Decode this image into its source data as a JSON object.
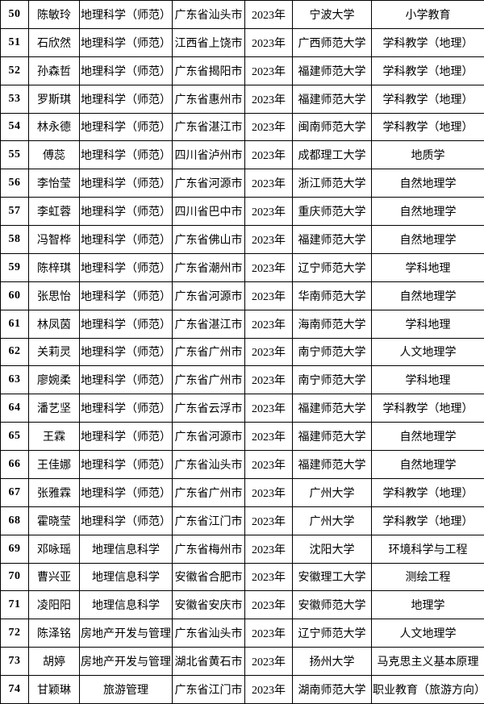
{
  "table": {
    "description_colors": {
      "border": "#000000",
      "text": "#000000",
      "background": "#ffffff"
    },
    "rows": [
      {
        "no": "50",
        "name": "陈敏玲",
        "major": "地理科学（师范）",
        "origin": "广东省汕头市",
        "year": "2023年",
        "university": "宁波大学",
        "program": "小学教育"
      },
      {
        "no": "51",
        "name": "石欣然",
        "major": "地理科学（师范）",
        "origin": "江西省上饶市",
        "year": "2023年",
        "university": "广西师范大学",
        "program": "学科教学（地理）"
      },
      {
        "no": "52",
        "name": "孙森哲",
        "major": "地理科学（师范）",
        "origin": "广东省揭阳市",
        "year": "2023年",
        "university": "福建师范大学",
        "program": "学科教学（地理）"
      },
      {
        "no": "53",
        "name": "罗斯琪",
        "major": "地理科学（师范）",
        "origin": "广东省惠州市",
        "year": "2023年",
        "university": "福建师范大学",
        "program": "学科教学（地理）"
      },
      {
        "no": "54",
        "name": "林永德",
        "major": "地理科学（师范）",
        "origin": "广东省湛江市",
        "year": "2023年",
        "university": "闽南师范大学",
        "program": "学科教学（地理）"
      },
      {
        "no": "55",
        "name": "傅蕊",
        "major": "地理科学（师范）",
        "origin": "四川省泸州市",
        "year": "2023年",
        "university": "成都理工大学",
        "program": "地质学"
      },
      {
        "no": "56",
        "name": "李怡莹",
        "major": "地理科学（师范）",
        "origin": "广东省河源市",
        "year": "2023年",
        "university": "浙江师范大学",
        "program": "自然地理学"
      },
      {
        "no": "57",
        "name": "李虹蓉",
        "major": "地理科学（师范）",
        "origin": "四川省巴中市",
        "year": "2023年",
        "university": "重庆师范大学",
        "program": "自然地理学"
      },
      {
        "no": "58",
        "name": "冯智桦",
        "major": "地理科学（师范）",
        "origin": "广东省佛山市",
        "year": "2023年",
        "university": "福建师范大学",
        "program": "自然地理学"
      },
      {
        "no": "59",
        "name": "陈梓琪",
        "major": "地理科学（师范）",
        "origin": "广东省潮州市",
        "year": "2023年",
        "university": "辽宁师范大学",
        "program": "学科地理"
      },
      {
        "no": "60",
        "name": "张思怡",
        "major": "地理科学（师范）",
        "origin": "广东省河源市",
        "year": "2023年",
        "university": "华南师范大学",
        "program": "自然地理学"
      },
      {
        "no": "61",
        "name": "林凤茵",
        "major": "地理科学（师范）",
        "origin": "广东省湛江市",
        "year": "2023年",
        "university": "海南师范大学",
        "program": "学科地理"
      },
      {
        "no": "62",
        "name": "关莉灵",
        "major": "地理科学（师范）",
        "origin": "广东省广州市",
        "year": "2023年",
        "university": "南宁师范大学",
        "program": "人文地理学"
      },
      {
        "no": "63",
        "name": "廖婉柔",
        "major": "地理科学（师范）",
        "origin": "广东省广州市",
        "year": "2023年",
        "university": "南宁师范大学",
        "program": "学科地理"
      },
      {
        "no": "64",
        "name": "潘艺坚",
        "major": "地理科学（师范）",
        "origin": "广东省云浮市",
        "year": "2023年",
        "university": "福建师范大学",
        "program": "学科教学（地理）"
      },
      {
        "no": "65",
        "name": "王霖",
        "major": "地理科学（师范）",
        "origin": "广东省河源市",
        "year": "2023年",
        "university": "福建师范大学",
        "program": "自然地理学"
      },
      {
        "no": "66",
        "name": "王佳娜",
        "major": "地理科学（师范）",
        "origin": "广东省汕头市",
        "year": "2023年",
        "university": "福建师范大学",
        "program": "自然地理学"
      },
      {
        "no": "67",
        "name": "张雅霖",
        "major": "地理科学（师范）",
        "origin": "广东省广州市",
        "year": "2023年",
        "university": "广州大学",
        "program": "学科教学（地理）"
      },
      {
        "no": "68",
        "name": "霍晓莹",
        "major": "地理科学（师范）",
        "origin": "广东省江门市",
        "year": "2023年",
        "university": "广州大学",
        "program": "学科教学（地理）"
      },
      {
        "no": "69",
        "name": "邓咏瑶",
        "major": "地理信息科学",
        "origin": "广东省梅州市",
        "year": "2023年",
        "university": "沈阳大学",
        "program": "环境科学与工程"
      },
      {
        "no": "70",
        "name": "曹兴亚",
        "major": "地理信息科学",
        "origin": "安徽省合肥市",
        "year": "2023年",
        "university": "安徽理工大学",
        "program": "测绘工程"
      },
      {
        "no": "71",
        "name": "凌阳阳",
        "major": "地理信息科学",
        "origin": "安徽省安庆市",
        "year": "2023年",
        "university": "安徽师范大学",
        "program": "地理学"
      },
      {
        "no": "72",
        "name": "陈泽铭",
        "major": "房地产开发与管理",
        "origin": "广东省汕头市",
        "year": "2023年",
        "university": "辽宁师范大学",
        "program": "人文地理学"
      },
      {
        "no": "73",
        "name": "胡婷",
        "major": "房地产开发与管理",
        "origin": "湖北省黄石市",
        "year": "2023年",
        "university": "扬州大学",
        "program": "马克思主义基本原理"
      },
      {
        "no": "74",
        "name": "甘颖琳",
        "major": "旅游管理",
        "origin": "广东省江门市",
        "year": "2023年",
        "university": "湖南师范大学",
        "program": "职业教育（旅游方向）"
      }
    ]
  }
}
